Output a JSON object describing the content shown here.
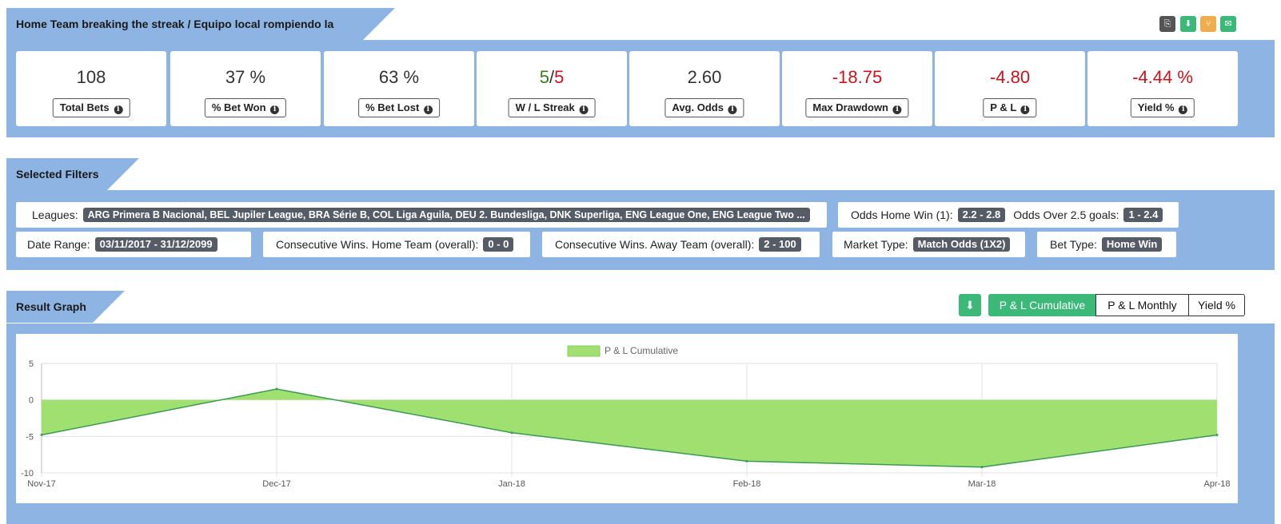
{
  "header": {
    "title": "Home Team breaking the streak / Equipo local rompiendo la racha"
  },
  "toolbar": {
    "icons": [
      "copy-icon",
      "download-icon",
      "share-icon",
      "email-icon"
    ],
    "colors": [
      "#555555",
      "#3cb878",
      "#f0ad4e",
      "#3cb878"
    ]
  },
  "stats": [
    {
      "value": "108",
      "label": "Total Bets"
    },
    {
      "value": "37 %",
      "label": "% Bet Won"
    },
    {
      "value": "63 %",
      "label": "% Bet Lost"
    },
    {
      "value_won": "5",
      "value_sep": "/",
      "value_lost": "5",
      "label": "W / L Streak"
    },
    {
      "value": "2.60",
      "label": "Avg. Odds"
    },
    {
      "value": "-18.75",
      "label": "Max Drawdown"
    },
    {
      "value": "-4.80",
      "label": "P & L"
    },
    {
      "value": "-4.44 %",
      "label": "Yield %"
    }
  ],
  "filters": {
    "title": "Selected Filters",
    "leagues": {
      "label": "Leagues:",
      "value": "ARG Primera B Nacional, BEL Jupiler League, BRA Série B, COL Liga Aguila, DEU 2. Bundesliga, DNK Superliga, ENG League One, ENG League Two ..."
    },
    "odds_home": {
      "label": "Odds Home Win (1):",
      "value": "2.2 - 2.8"
    },
    "odds_over": {
      "label": "Odds Over 2.5 goals:",
      "value": "1 - 2.4"
    },
    "date_range": {
      "label": "Date Range:",
      "value": "03/11/2017 - 31/12/2099"
    },
    "cons_home": {
      "label": "Consecutive Wins. Home Team (overall):",
      "value": "0 - 0"
    },
    "cons_away": {
      "label": "Consecutive Wins. Away Team (overall):",
      "value": "2 - 100"
    },
    "market": {
      "label": "Market Type:",
      "value": "Match Odds (1X2)"
    },
    "bet_type": {
      "label": "Bet Type:",
      "value": "Home Win"
    }
  },
  "graph": {
    "title": "Result Graph",
    "tabs": [
      "P & L Cumulative",
      "P & L Monthly",
      "Yield %"
    ],
    "active_tab": "P & L Cumulative",
    "fill_color": "#a0e070",
    "line_color": "#3c9a55"
  },
  "chart_data": {
    "type": "area",
    "series": [
      {
        "name": "P & L Cumulative",
        "values": [
          -4.8,
          1.5,
          -4.5,
          -8.4,
          -9.2,
          -4.8
        ]
      }
    ],
    "categories": [
      "Nov-17",
      "Dec-17",
      "Jan-18",
      "Feb-18",
      "Mar-18",
      "Apr-18"
    ],
    "ylim": [
      -10,
      5
    ],
    "yticks": [
      5,
      0,
      -5,
      -10
    ],
    "grid": true,
    "legend": "top-center"
  }
}
